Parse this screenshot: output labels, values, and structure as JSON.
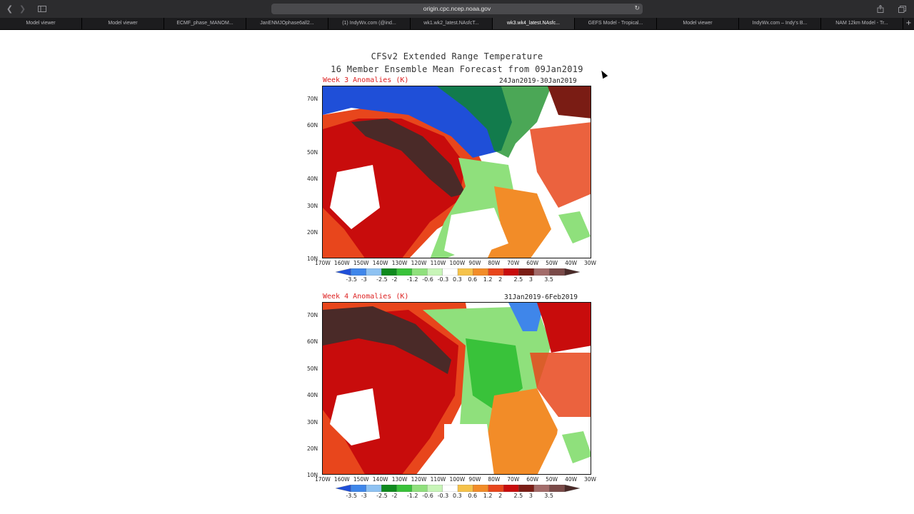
{
  "browser": {
    "url": "origin.cpc.ncep.noaa.gov",
    "tabs": [
      {
        "label": "Model viewer",
        "active": false
      },
      {
        "label": "Model viewer",
        "active": false
      },
      {
        "label": "ECMF_phase_MANOM...",
        "active": false
      },
      {
        "label": "JanENMJOphase6all2...",
        "active": false
      },
      {
        "label": "(1) IndyWx.com (@ind...",
        "active": false
      },
      {
        "label": "wk1.wk2_latest.NAsfcT...",
        "active": false
      },
      {
        "label": "wk3.wk4_latest.NAsfc...",
        "active": true
      },
      {
        "label": "GEFS Model - Tropical...",
        "active": false
      },
      {
        "label": "Model viewer",
        "active": false
      },
      {
        "label": "IndyWx.com – Indy's B...",
        "active": false
      },
      {
        "label": "NAM 12km Model - Tr...",
        "active": false
      }
    ],
    "new_tab": "+",
    "icons": {
      "back": "chevron-left-icon",
      "forward": "chevron-right-icon",
      "sidebar": "sidebar-icon",
      "reload": "reload-icon",
      "share": "share-icon",
      "tabs": "tabs-overview-icon"
    }
  },
  "figure": {
    "title_line1": "CFSv2 Extended Range Temperature",
    "title_line2": "16 Member Ensemble Mean Forecast from 09Jan2019",
    "panels": [
      {
        "label": "Week 3 Anomalies (K)",
        "dates": "24Jan2019-30Jan2019"
      },
      {
        "label": "Week 4 Anomalies (K)",
        "dates": "31Jan2019-6Feb2019"
      }
    ],
    "lat_labels": [
      "70N",
      "60N",
      "50N",
      "40N",
      "30N",
      "20N",
      "10N"
    ],
    "lon_labels": [
      "170W",
      "160W",
      "150W",
      "140W",
      "130W",
      "120W",
      "110W",
      "100W",
      "90W",
      "80W",
      "70W",
      "60W",
      "50W",
      "40W",
      "30W"
    ],
    "colorbar_labels": [
      "-3.5",
      "-3",
      "-2.5",
      "-2",
      "-1.2",
      "-0.6",
      "-0.3",
      "0.3",
      "0.6",
      "1.2",
      "2",
      "2.5",
      "3",
      "3.5"
    ],
    "colorbar_colors": [
      "#1f4fd8",
      "#3f86ea",
      "#8ec2f2",
      "#0f8a1e",
      "#39c23a",
      "#8fe07c",
      "#c8f5b8",
      "#ffffff",
      "#f5c24a",
      "#f28c28",
      "#e8461c",
      "#c80c0c",
      "#7a1c14",
      "#a36c6a",
      "#7a4a48",
      "#4a2a28"
    ]
  }
}
